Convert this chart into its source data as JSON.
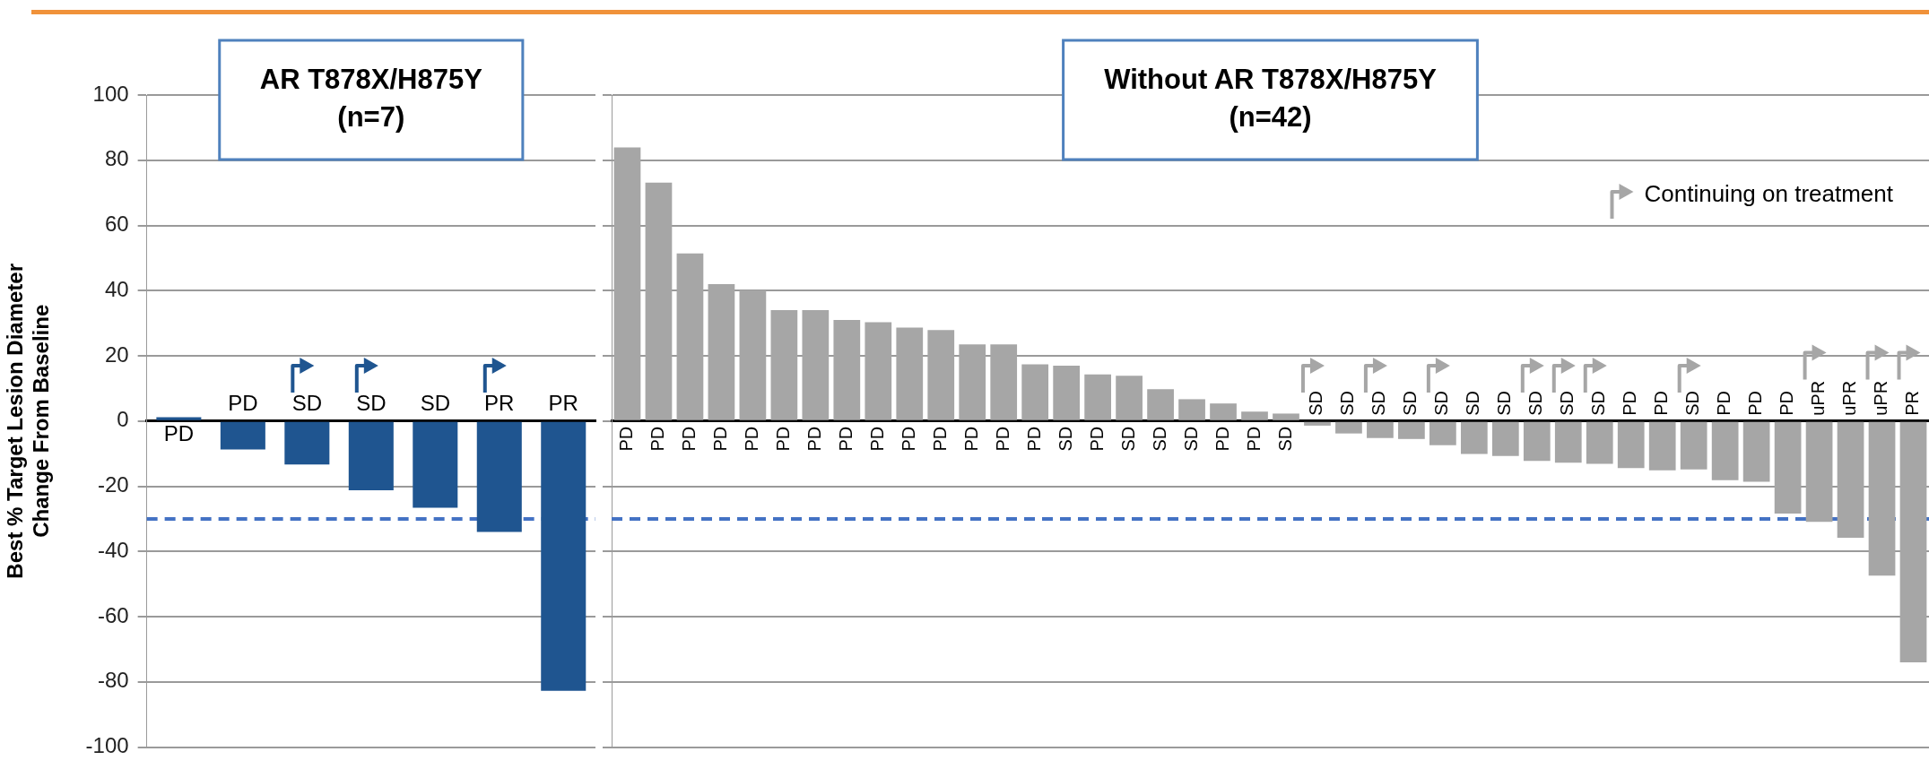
{
  "chart_data": [
    {
      "type": "bar",
      "title": "AR T878X/H875Y\n(n=7)",
      "ylabel": "Best % Target Lesion Diameter\nChange From Baseline",
      "categories": [
        "PD",
        "PD",
        "SD",
        "SD",
        "SD",
        "PR",
        "PR"
      ],
      "series": [
        {
          "colors": [
            "#1f5590",
            "#1f5590",
            "#1f5590",
            "#1f5590",
            "#1f5590",
            "#1f5590",
            "#1f5590"
          ],
          "values": [
            1.2,
            -8.7,
            -13.3,
            -21.2,
            -26.6,
            -34,
            -82.7
          ]
        },
        {
          "type": "scatter",
          "color": "#1f5590",
          "values": [
            null,
            null,
            17,
            17,
            null,
            17,
            null
          ]
        }
      ],
      "ylim": [
        -100,
        100
      ],
      "yticks": [
        -100,
        -80,
        -60,
        -40,
        -20,
        0,
        20,
        40,
        60,
        80,
        100
      ],
      "grid": "y",
      "tick_labels": "y",
      "legend": false,
      "ref_lines": [
        {
          "axis": "y",
          "value": -30,
          "color": "#4472c4",
          "line_style": "dashed"
        }
      ]
    },
    {
      "type": "bar",
      "title": "Without AR T878X/H875Y\n(n=42)",
      "categories": [
        "PD",
        "PD",
        "PD",
        "PD",
        "PD",
        "PD",
        "PD",
        "PD",
        "PD",
        "PD",
        "PD",
        "PD",
        "PD",
        "PD",
        "SD",
        "PD",
        "SD",
        "SD",
        "SD",
        "PD",
        "PD",
        "SD",
        "SD",
        "SD",
        "SD",
        "SD",
        "SD",
        "SD",
        "SD",
        "SD",
        "SD",
        "SD",
        "PD",
        "PD",
        "SD",
        "PD",
        "PD",
        "PD",
        "uPR",
        "uPR",
        "uPR",
        "PR"
      ],
      "series": [
        {
          "colors": [
            "#a6a6a6",
            "#a6a6a6",
            "#a6a6a6",
            "#a6a6a6",
            "#a6a6a6",
            "#a6a6a6",
            "#a6a6a6",
            "#a6a6a6",
            "#a6a6a6",
            "#a6a6a6",
            "#a6a6a6",
            "#a6a6a6",
            "#a6a6a6",
            "#a6a6a6",
            "#a6a6a6",
            "#a6a6a6",
            "#a6a6a6",
            "#a6a6a6",
            "#a6a6a6",
            "#a6a6a6",
            "#a6a6a6",
            "#a6a6a6",
            "#a6a6a6",
            "#a6a6a6",
            "#a6a6a6",
            "#a6a6a6",
            "#a6a6a6",
            "#a6a6a6",
            "#a6a6a6",
            "#a6a6a6",
            "#a6a6a6",
            "#a6a6a6",
            "#a6a6a6",
            "#a6a6a6",
            "#a6a6a6",
            "#a6a6a6",
            "#a6a6a6",
            "#a6a6a6",
            "#a6a6a6",
            "#a6a6a6",
            "#a6a6a6",
            "#a6a6a6"
          ],
          "values": [
            83.9,
            73.1,
            51.4,
            42.0,
            40.1,
            34.0,
            34.0,
            31.0,
            30.3,
            28.7,
            27.9,
            23.5,
            23.5,
            17.4,
            17.0,
            14.3,
            13.9,
            9.8,
            6.7,
            5.4,
            2.9,
            2.3,
            -1.4,
            -3.8,
            -5.2,
            -5.5,
            -7.4,
            -10.1,
            -10.7,
            -12.2,
            -12.8,
            -13.1,
            -14.4,
            -15.1,
            -14.8,
            -18.1,
            -18.6,
            -28.4,
            -30.9,
            -35.8,
            -47.4,
            -74.0
          ]
        },
        {
          "type": "scatter",
          "name": "Continuing on treatment",
          "color": "#a6a6a6",
          "values": [
            null,
            null,
            null,
            null,
            null,
            null,
            null,
            null,
            null,
            null,
            null,
            null,
            null,
            null,
            null,
            null,
            null,
            null,
            null,
            null,
            null,
            null,
            17,
            null,
            17,
            null,
            17,
            null,
            null,
            17,
            17,
            17,
            null,
            null,
            17,
            null,
            null,
            null,
            21,
            null,
            21,
            21
          ]
        }
      ],
      "ylim": [
        -100,
        100
      ],
      "yticks": [
        -100,
        -80,
        -60,
        -40,
        -20,
        0,
        20,
        40,
        60,
        80,
        100
      ],
      "grid": "y",
      "tick_labels": false,
      "legend": "top right",
      "ref_lines": [
        {
          "axis": "y",
          "value": -30,
          "color": "#4472c4",
          "line_style": "dashed"
        }
      ]
    }
  ]
}
